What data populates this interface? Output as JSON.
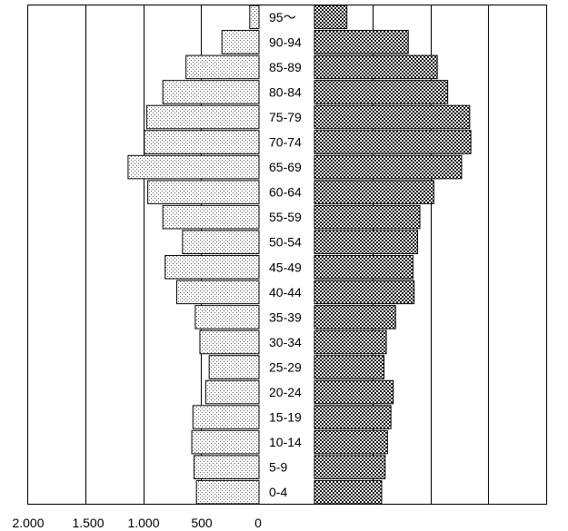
{
  "chart_data": {
    "type": "bar",
    "orientation": "horizontal-pyramid",
    "categories": [
      "0-4",
      "5-9",
      "10-14",
      "15-19",
      "20-24",
      "25-29",
      "30-34",
      "35-39",
      "40-44",
      "45-49",
      "50-54",
      "55-59",
      "60-64",
      "65-69",
      "70-74",
      "75-79",
      "80-84",
      "85-89",
      "90-94",
      "95～"
    ],
    "series": [
      {
        "side": "left",
        "pattern": "dotted",
        "values": [
          540,
          560,
          580,
          570,
          460,
          430,
          510,
          550,
          710,
          810,
          660,
          830,
          960,
          1130,
          990,
          970,
          830,
          630,
          320,
          80
        ]
      },
      {
        "side": "right",
        "pattern": "checkered",
        "values": [
          580,
          610,
          630,
          660,
          680,
          600,
          620,
          700,
          860,
          850,
          890,
          910,
          1030,
          1270,
          1350,
          1340,
          1150,
          1060,
          810,
          280
        ]
      }
    ],
    "x_tick_labels": [
      "2.000",
      "1.500",
      "1.000",
      "500",
      "0"
    ],
    "x_tick_values": [
      2000,
      1500,
      1000,
      500,
      0
    ],
    "xlim": [
      0,
      2000
    ],
    "grid": "vertical",
    "colors": {
      "left_fill": "#ffffff",
      "left_dot": "#555555",
      "right_dark": "#111111",
      "right_light": "#ffffff",
      "grid": "#000000"
    }
  }
}
